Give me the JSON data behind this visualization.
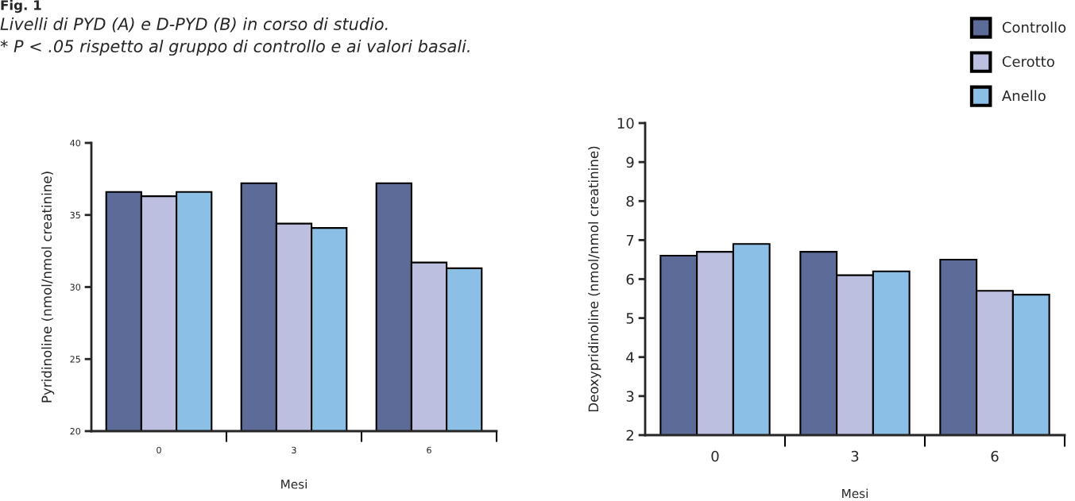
{
  "chart_data": [
    {
      "type": "bar",
      "title": "Livelli di PYD (A) e D-PYD (B) in corso di studio.",
      "subtitle": "* P < .05 rispetto al gruppo di controllo e ai valori basali.",
      "annotations": [
        "Fig. 1"
      ],
      "xlabel": "Mesi",
      "ylabel": "Pyridinoline (nmol/nmol creatinine)",
      "categories": [
        "0",
        "3",
        "6"
      ],
      "ylim": [
        20,
        40
      ],
      "yticks": [
        20,
        25,
        30,
        35,
        40
      ],
      "grid": false,
      "legend": false,
      "series": [
        {
          "color": "#5d6b98",
          "values": [
            36.6,
            37.2,
            37.2
          ]
        },
        {
          "color": "#bdbfe0",
          "values": [
            36.3,
            34.4,
            31.7
          ]
        },
        {
          "color": "#8bbfe6",
          "values": [
            36.6,
            34.1,
            31.3
          ]
        }
      ]
    },
    {
      "type": "bar",
      "xlabel": "Mesi",
      "ylabel": "Deoxypridinoline (nmol/nmol creatinine)",
      "categories": [
        "0",
        "3",
        "6"
      ],
      "ylim": [
        2,
        10
      ],
      "yticks": [
        2,
        3,
        4,
        5,
        6,
        7,
        8,
        9,
        10
      ],
      "grid": false,
      "legend": "top right",
      "series": [
        {
          "name": "Controllo",
          "color": "#5d6b98",
          "values": [
            6.6,
            6.7,
            6.5
          ]
        },
        {
          "name": "Cerotto",
          "color": "#bdbfe0",
          "values": [
            6.7,
            6.1,
            5.7
          ]
        },
        {
          "name": "Anello",
          "color": "#8bbfe6",
          "values": [
            6.9,
            6.2,
            5.6
          ]
        }
      ]
    }
  ]
}
